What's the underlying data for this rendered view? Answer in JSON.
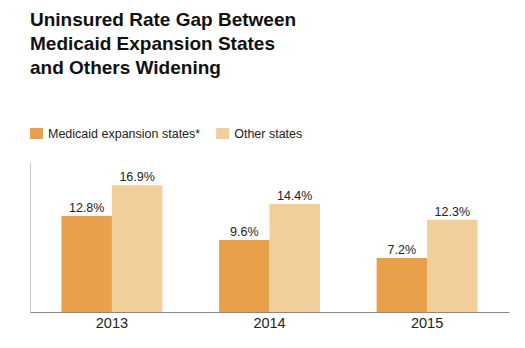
{
  "chart_data": {
    "type": "bar",
    "title": "Uninsured Rate Gap Between\nMedicaid Expansion States\nand Others Widening",
    "categories": [
      "2013",
      "2014",
      "2015"
    ],
    "series": [
      {
        "name": "Medicaid expansion states*",
        "color": "#E8A04A",
        "values": [
          12.8,
          9.6,
          7.2
        ],
        "value_labels": [
          "12.8%",
          "9.6%",
          "7.2%"
        ]
      },
      {
        "name": "Other states",
        "color": "#F0CF9A",
        "values": [
          16.9,
          14.4,
          12.3
        ],
        "value_labels": [
          "16.9%",
          "14.4%",
          "12.3%"
        ]
      }
    ],
    "ylim": [
      0,
      20
    ],
    "grid": false,
    "legend": "upper left",
    "data_labels": true,
    "tick_labels": "x"
  }
}
